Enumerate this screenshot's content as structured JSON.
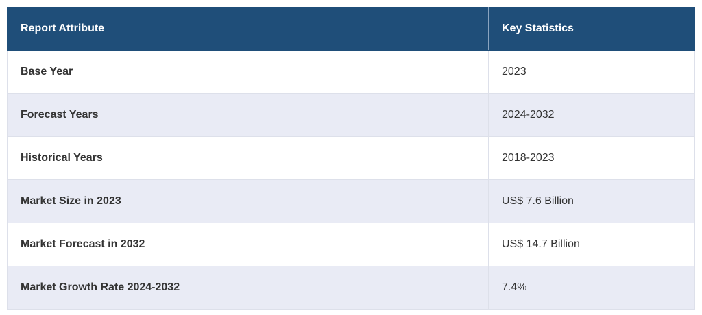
{
  "table": {
    "header": [
      "Report Attribute",
      "Key Statistics"
    ],
    "rows": [
      [
        "Base Year",
        "2023"
      ],
      [
        "Forecast Years",
        "2024-2032"
      ],
      [
        "Historical Years",
        "2018-2023"
      ],
      [
        "Market Size in 2023",
        "US$ 7.6 Billion"
      ],
      [
        "Market Forecast in 2032",
        "US$ 14.7 Billion"
      ],
      [
        "Market Growth Rate 2024-2032",
        "7.4%"
      ]
    ]
  }
}
